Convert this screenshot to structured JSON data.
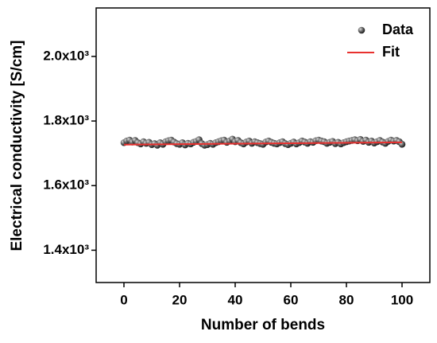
{
  "chart_data": {
    "type": "scatter",
    "xlabel": "Number of bends",
    "ylabel": "Electrical conductivity [S/cm]",
    "xlim": [
      -10,
      110
    ],
    "xticks": [
      0,
      20,
      40,
      60,
      80,
      100
    ],
    "ylim": [
      1300,
      2150
    ],
    "yticks": [
      {
        "value": 1400,
        "label": "1.4x10³"
      },
      {
        "value": 1600,
        "label": "1.6x10³"
      },
      {
        "value": 1800,
        "label": "1.8x10³"
      },
      {
        "value": 2000,
        "label": "2.0x10³"
      }
    ],
    "legend": "upper right",
    "series": [
      {
        "name": "Data",
        "color": "#5a5a5a",
        "x": [
          0,
          1,
          2,
          3,
          4,
          5,
          6,
          7,
          8,
          9,
          10,
          11,
          12,
          13,
          14,
          15,
          16,
          17,
          18,
          19,
          20,
          21,
          22,
          23,
          24,
          25,
          26,
          27,
          28,
          29,
          30,
          31,
          32,
          33,
          34,
          35,
          36,
          37,
          38,
          39,
          40,
          41,
          42,
          43,
          44,
          45,
          46,
          47,
          48,
          49,
          50,
          51,
          52,
          53,
          54,
          55,
          56,
          57,
          58,
          59,
          60,
          61,
          62,
          63,
          64,
          65,
          66,
          67,
          68,
          69,
          70,
          71,
          72,
          73,
          74,
          75,
          76,
          77,
          78,
          79,
          80,
          81,
          82,
          83,
          84,
          85,
          86,
          87,
          88,
          89,
          90,
          91,
          92,
          93,
          94,
          95,
          96,
          97,
          98,
          99,
          100
        ],
        "values": [
          1733,
          1738,
          1741,
          1735,
          1740,
          1733,
          1729,
          1736,
          1731,
          1734,
          1727,
          1730,
          1725,
          1733,
          1728,
          1736,
          1739,
          1741,
          1735,
          1730,
          1728,
          1733,
          1726,
          1731,
          1729,
          1734,
          1737,
          1742,
          1730,
          1725,
          1727,
          1731,
          1728,
          1733,
          1736,
          1739,
          1741,
          1734,
          1738,
          1744,
          1736,
          1740,
          1733,
          1729,
          1735,
          1738,
          1731,
          1736,
          1733,
          1730,
          1728,
          1735,
          1738,
          1734,
          1731,
          1729,
          1733,
          1736,
          1730,
          1727,
          1731,
          1735,
          1729,
          1733,
          1738,
          1735,
          1731,
          1736,
          1734,
          1739,
          1741,
          1738,
          1736,
          1731,
          1734,
          1737,
          1730,
          1734,
          1729,
          1733,
          1736,
          1738,
          1740,
          1742,
          1739,
          1743,
          1737,
          1741,
          1734,
          1738,
          1732,
          1736,
          1740,
          1735,
          1731,
          1737,
          1741,
          1738,
          1740,
          1736,
          1728
        ]
      },
      {
        "name": "Fit",
        "color": "#e8312f",
        "x": [
          0,
          100
        ],
        "values": [
          1727,
          1734
        ]
      }
    ]
  }
}
